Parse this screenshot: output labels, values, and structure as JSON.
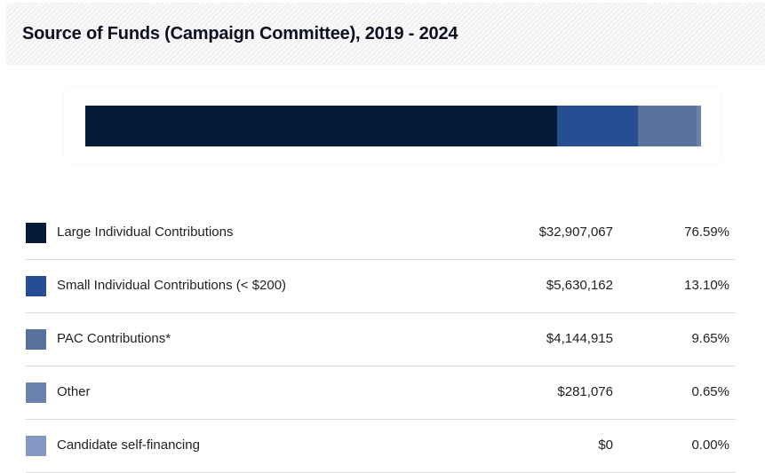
{
  "header": {
    "title": "Source of Funds (Campaign Committee), 2019 - 2024"
  },
  "chart_data": {
    "type": "bar",
    "subtype": "stacked-horizontal-100",
    "title": "Source of Funds (Campaign Committee), 2019 - 2024",
    "categories": [
      "Large Individual Contributions",
      "Small Individual Contributions (< $200)",
      "PAC Contributions*",
      "Other",
      "Candidate self-financing"
    ],
    "values": [
      32907067,
      5630162,
      4144915,
      281076,
      0
    ],
    "percentages": [
      76.59,
      13.1,
      9.65,
      0.65,
      0.0
    ],
    "colors": [
      "#071a38",
      "#264f93",
      "#57709c",
      "#6b82b0",
      "#8398c2"
    ],
    "legend_position": "below",
    "grid": false
  },
  "legend": {
    "rows": [
      {
        "label": "Large Individual Contributions",
        "amount": "$32,907,067",
        "percent": "76.59%",
        "color": "#071a38"
      },
      {
        "label": "Small Individual Contributions (< $200)",
        "amount": "$5,630,162",
        "percent": "13.10%",
        "color": "#264f93"
      },
      {
        "label": "PAC Contributions*",
        "amount": "$4,144,915",
        "percent": "9.65%",
        "color": "#57709c"
      },
      {
        "label": "Other",
        "amount": "$281,076",
        "percent": "0.65%",
        "color": "#6b82b0"
      },
      {
        "label": "Candidate self-financing",
        "amount": "$0",
        "percent": "0.00%",
        "color": "#8398c2"
      }
    ]
  }
}
